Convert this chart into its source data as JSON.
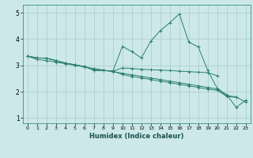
{
  "title": "",
  "xlabel": "Humidex (Indice chaleur)",
  "bg_color": "#cce8e8",
  "line_color": "#2a7f6f",
  "grid_color": "#aacccc",
  "xlim": [
    -0.5,
    23.5
  ],
  "ylim": [
    0.8,
    5.3
  ],
  "xticks": [
    0,
    1,
    2,
    3,
    4,
    5,
    6,
    7,
    8,
    9,
    10,
    11,
    12,
    13,
    14,
    15,
    16,
    17,
    18,
    19,
    20,
    21,
    22,
    23
  ],
  "yticks": [
    1,
    2,
    3,
    4,
    5
  ],
  "lines": [
    [
      3.35,
      3.28,
      3.27,
      3.18,
      3.08,
      3.02,
      2.95,
      2.82,
      2.8,
      2.78,
      3.72,
      3.52,
      3.28,
      3.92,
      4.32,
      4.62,
      4.95,
      3.88,
      3.7,
      2.8,
      2.12,
      1.88,
      1.4,
      1.68
    ],
    [
      3.35,
      3.28,
      3.27,
      3.18,
      3.08,
      3.02,
      2.95,
      2.82,
      2.8,
      2.78,
      2.9,
      2.88,
      2.85,
      2.83,
      2.82,
      2.8,
      2.78,
      2.76,
      2.74,
      2.72,
      2.6,
      null,
      null,
      null
    ],
    [
      3.35,
      3.28,
      3.27,
      3.18,
      3.08,
      3.02,
      2.95,
      2.82,
      2.8,
      2.78,
      2.65,
      2.58,
      2.52,
      2.46,
      2.4,
      2.34,
      2.28,
      2.22,
      2.16,
      2.1,
      2.05,
      1.82,
      1.78,
      null
    ],
    [
      3.35,
      3.22,
      3.18,
      3.12,
      3.06,
      3.0,
      2.94,
      2.88,
      2.82,
      2.76,
      2.7,
      2.64,
      2.58,
      2.52,
      2.46,
      2.4,
      2.34,
      2.28,
      2.22,
      2.16,
      2.1,
      1.85,
      1.8,
      1.6
    ]
  ]
}
